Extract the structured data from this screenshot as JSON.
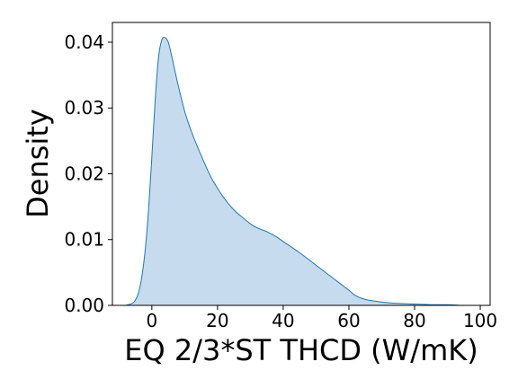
{
  "chart_data": {
    "type": "area",
    "title": "",
    "xlabel": "EQ 2/3*ST THCD (W/mK)",
    "ylabel": "Density",
    "xlim": [
      -12,
      103
    ],
    "ylim": [
      0,
      0.043
    ],
    "xticks": [
      0,
      20,
      40,
      60,
      80,
      100
    ],
    "xtick_labels": [
      "0",
      "20",
      "40",
      "60",
      "80",
      "100"
    ],
    "yticks": [
      0,
      0.01,
      0.02,
      0.03,
      0.04
    ],
    "ytick_labels": [
      "0.00",
      "0.01",
      "0.02",
      "0.03",
      "0.04"
    ],
    "grid": false,
    "legend": "none",
    "colors": {
      "line": "#1f77b4",
      "fill": "#c6dbee"
    },
    "series": [
      {
        "x": [
          -8,
          -6,
          -5,
          -4,
          -3,
          -2,
          -1,
          0,
          1,
          2,
          3,
          4,
          5,
          6,
          8,
          10,
          12,
          15,
          18,
          20,
          22,
          25,
          28,
          30,
          32,
          35,
          38,
          40,
          45,
          50,
          55,
          60,
          62,
          65,
          70,
          75,
          80,
          85,
          90,
          95,
          100
        ],
        "y": [
          0.0,
          0.0003,
          0.0008,
          0.002,
          0.0045,
          0.0085,
          0.0145,
          0.0225,
          0.031,
          0.0375,
          0.0403,
          0.0407,
          0.04,
          0.038,
          0.0335,
          0.0295,
          0.0265,
          0.0228,
          0.0195,
          0.0178,
          0.0163,
          0.0145,
          0.0132,
          0.0124,
          0.0118,
          0.0112,
          0.0104,
          0.0097,
          0.008,
          0.0061,
          0.0042,
          0.0023,
          0.0015,
          0.0009,
          0.0005,
          0.0003,
          0.0002,
          0.0001,
          0.0001,
          0.0,
          0.0
        ]
      }
    ]
  }
}
